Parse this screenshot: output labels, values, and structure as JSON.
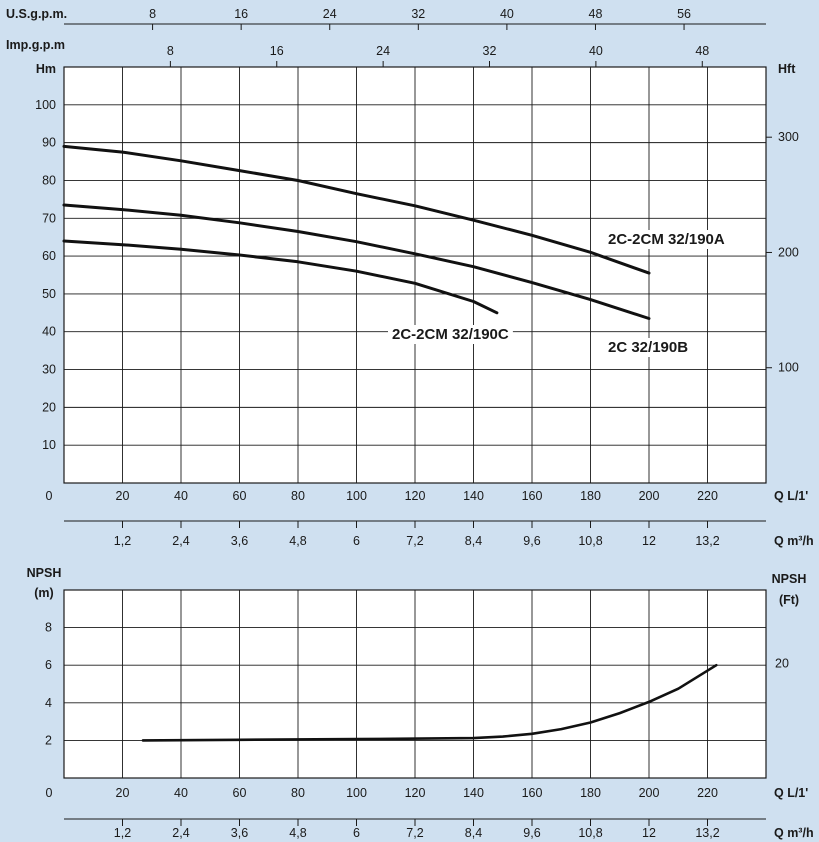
{
  "chart_data": [
    {
      "type": "line",
      "title": "",
      "x_axes": {
        "usgpm": {
          "label": "U.S.g.p.m.",
          "ticks": [
            "8",
            "16",
            "24",
            "32",
            "40",
            "48",
            "56"
          ],
          "values": [
            8,
            16,
            24,
            32,
            40,
            48,
            56
          ]
        },
        "impgpm": {
          "label": "Imp.g.p.m",
          "ticks": [
            "8",
            "16",
            "24",
            "32",
            "40",
            "48"
          ],
          "values": [
            8,
            16,
            24,
            32,
            40,
            48
          ]
        },
        "lmin": {
          "label": "Q L/1'",
          "ticks": [
            "0",
            "20",
            "40",
            "60",
            "80",
            "100",
            "120",
            "140",
            "160",
            "180",
            "200",
            "220"
          ],
          "values": [
            0,
            20,
            40,
            60,
            80,
            100,
            120,
            140,
            160,
            180,
            200,
            220
          ]
        },
        "m3h": {
          "label": "Q m³/h",
          "ticks": [
            "1,2",
            "2,4",
            "3,6",
            "4,8",
            "6",
            "7,2",
            "8,4",
            "9,6",
            "10,8",
            "12",
            "13,2"
          ],
          "values": [
            1.2,
            2.4,
            3.6,
            4.8,
            6,
            7.2,
            8.4,
            9.6,
            10.8,
            12,
            13.2
          ]
        }
      },
      "y_axes": {
        "left": {
          "label": "Hm",
          "ticks": [
            "10",
            "20",
            "30",
            "40",
            "50",
            "60",
            "70",
            "80",
            "90",
            "100"
          ],
          "values": [
            10,
            20,
            30,
            40,
            50,
            60,
            70,
            80,
            90,
            100
          ]
        },
        "right": {
          "label": "Hft",
          "ticks": [
            "100",
            "200",
            "300"
          ],
          "values": [
            100,
            200,
            300
          ]
        }
      },
      "xlim": [
        0,
        240
      ],
      "ylim": [
        0,
        110
      ],
      "grid": true,
      "series": [
        {
          "name": "2C-2CM 32/190A",
          "x": [
            0,
            20,
            40,
            60,
            80,
            100,
            120,
            140,
            160,
            180,
            200
          ],
          "y": [
            89,
            87.5,
            85.2,
            82.6,
            80,
            76.5,
            73.3,
            69.5,
            65.5,
            61,
            55.5
          ]
        },
        {
          "name": "2C 32/190B",
          "x": [
            0,
            20,
            40,
            60,
            80,
            100,
            120,
            140,
            160,
            180,
            200
          ],
          "y": [
            73.5,
            72.3,
            70.8,
            68.8,
            66.5,
            63.8,
            60.6,
            57.2,
            53,
            48.5,
            43.5
          ]
        },
        {
          "name": "2C-2CM 32/190C",
          "x": [
            0,
            20,
            40,
            60,
            80,
            100,
            120,
            140,
            148
          ],
          "y": [
            64,
            63,
            61.8,
            60.3,
            58.5,
            56,
            52.8,
            48,
            45
          ]
        }
      ]
    },
    {
      "type": "line",
      "title": "",
      "x_axes": {
        "lmin": {
          "label": "Q L/1'",
          "ticks": [
            "0",
            "20",
            "40",
            "60",
            "80",
            "100",
            "120",
            "140",
            "160",
            "180",
            "200",
            "220"
          ],
          "values": [
            0,
            20,
            40,
            60,
            80,
            100,
            120,
            140,
            160,
            180,
            200,
            220
          ]
        },
        "m3h": {
          "label": "Q m³/h",
          "ticks": [
            "1,2",
            "2,4",
            "3,6",
            "4,8",
            "6",
            "7,2",
            "8,4",
            "9,6",
            "10,8",
            "12",
            "13,2"
          ],
          "values": [
            1.2,
            2.4,
            3.6,
            4.8,
            6,
            7.2,
            8.4,
            9.6,
            10.8,
            12,
            13.2
          ]
        }
      },
      "y_axes": {
        "left": {
          "label_line1": "NPSH",
          "label_line2": "(m)",
          "ticks": [
            "2",
            "4",
            "6",
            "8"
          ],
          "values": [
            2,
            4,
            6,
            8
          ]
        },
        "right": {
          "label_line1": "NPSH",
          "label_line2": "(Ft)",
          "ticks": [
            "20"
          ],
          "values": [
            20
          ]
        }
      },
      "xlim": [
        0,
        240
      ],
      "ylim": [
        0,
        10
      ],
      "grid": true,
      "series": [
        {
          "name": "",
          "x": [
            27,
            60,
            100,
            140,
            150,
            160,
            170,
            180,
            190,
            200,
            210,
            223
          ],
          "y": [
            2,
            2.03,
            2.07,
            2.12,
            2.2,
            2.35,
            2.6,
            2.95,
            3.45,
            4.05,
            4.75,
            6
          ]
        }
      ]
    }
  ]
}
